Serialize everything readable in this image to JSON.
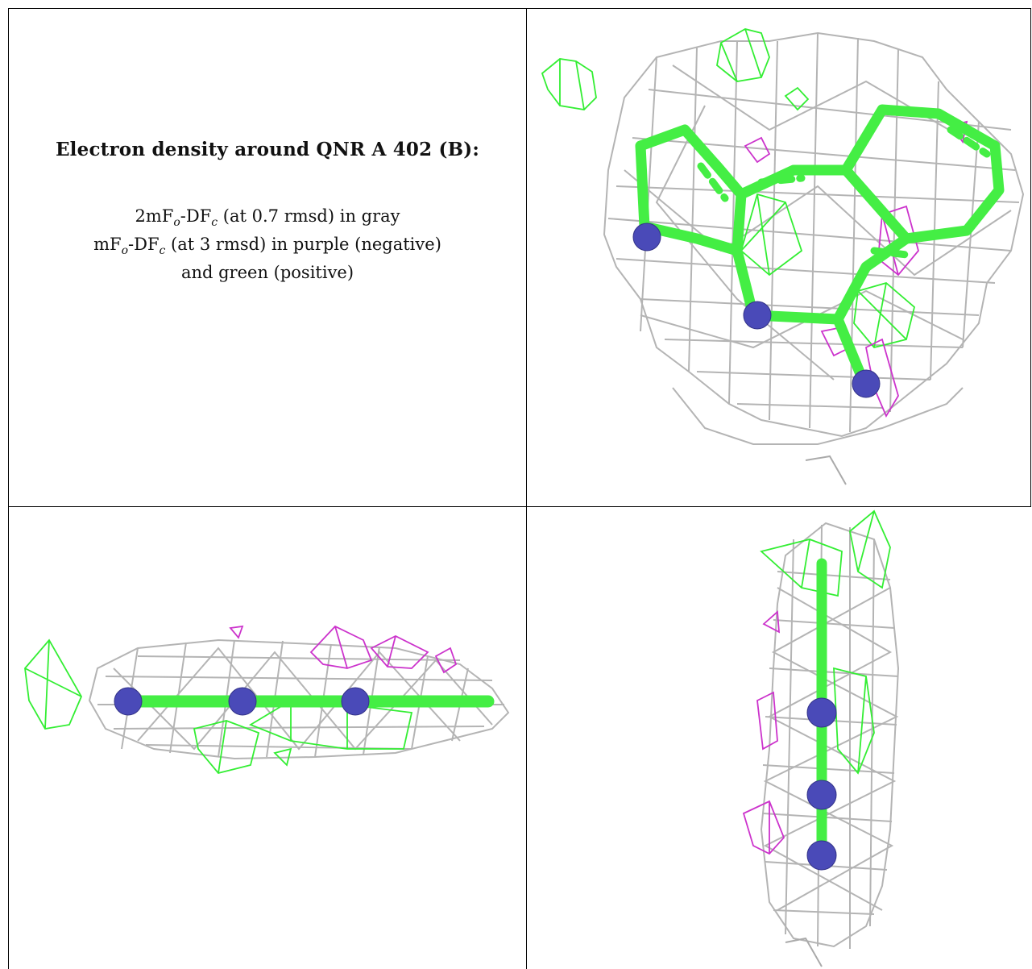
{
  "caption": {
    "title": "Electron density around QNR A 402 (B):",
    "line1_prefix": "2mF",
    "line1_sub1": "o",
    "line1_mid": "-DF",
    "line1_sub2": "c",
    "line1_suffix": " (at 0.7 rmsd) in gray",
    "line2_prefix": "mF",
    "line2_sub1": "o",
    "line2_mid": "-DF",
    "line2_sub2": "c",
    "line2_suffix": " (at 3 rmsd) in purple (negative)",
    "line3": "and green (positive)"
  },
  "colors": {
    "density_2fofc": "#b8b8b8",
    "difference_negative": "#cc33cc",
    "difference_positive": "#33ee33",
    "carbon_stick": "#44ee44",
    "nitrogen_atom": "#4a4ab8",
    "border": "#000000"
  },
  "panels": [
    {
      "id": "view-top",
      "label": ""
    },
    {
      "id": "view-side",
      "label": ""
    },
    {
      "id": "view-edge",
      "label": ""
    }
  ]
}
